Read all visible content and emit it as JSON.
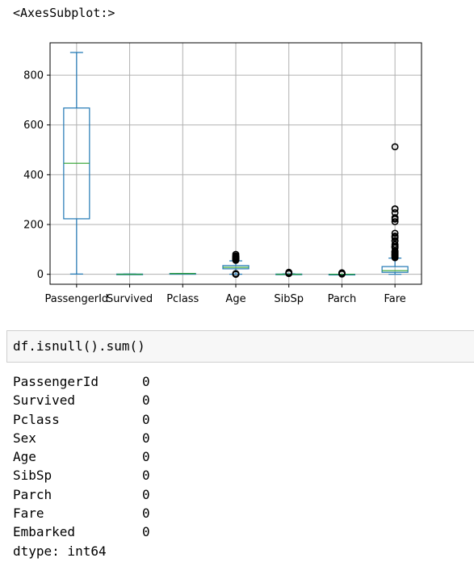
{
  "output_label": "<AxesSubplot:>",
  "code_cell": {
    "code": "df.isnull().sum()"
  },
  "null_counts": [
    {
      "name": "PassengerId",
      "value": "0"
    },
    {
      "name": "Survived",
      "value": "0"
    },
    {
      "name": "Pclass",
      "value": "0"
    },
    {
      "name": "Sex",
      "value": "0"
    },
    {
      "name": "Age",
      "value": "0"
    },
    {
      "name": "SibSp",
      "value": "0"
    },
    {
      "name": "Parch",
      "value": "0"
    },
    {
      "name": "Fare",
      "value": "0"
    },
    {
      "name": "Embarked",
      "value": "0"
    }
  ],
  "dtype_line": "dtype: int64",
  "chart_data": {
    "type": "box",
    "title": "",
    "xlabel": "",
    "ylabel": "",
    "ylim": [
      -40,
      930
    ],
    "yticks": [
      0,
      200,
      400,
      600,
      800
    ],
    "grid": true,
    "colors": {
      "box": "#1f77b4",
      "median": "#2ca02c",
      "grid": "#b0b0b0"
    },
    "series": [
      {
        "name": "PassengerId",
        "whislo": 1,
        "q1": 223,
        "med": 446,
        "q3": 668,
        "whishi": 891,
        "fliers": []
      },
      {
        "name": "Survived",
        "whislo": 0,
        "q1": 0,
        "med": 0,
        "q3": 1,
        "whishi": 1,
        "fliers": []
      },
      {
        "name": "Pclass",
        "whislo": 1,
        "q1": 2,
        "med": 3,
        "q3": 3,
        "whishi": 3,
        "fliers": []
      },
      {
        "name": "Age",
        "whislo": 0.42,
        "q1": 22,
        "med": 28,
        "q3": 35,
        "whishi": 54,
        "fliers": [
          0.42,
          0.67,
          0.75,
          0.83,
          0.92,
          1,
          2,
          3,
          56,
          58,
          60,
          62,
          64,
          65,
          66,
          70,
          71,
          74,
          80
        ]
      },
      {
        "name": "SibSp",
        "whislo": 0,
        "q1": 0,
        "med": 0,
        "q3": 1,
        "whishi": 2,
        "fliers": [
          3,
          4,
          5,
          8
        ]
      },
      {
        "name": "Parch",
        "whislo": 0,
        "q1": 0,
        "med": 0,
        "q3": 0,
        "whishi": 0,
        "fliers": [
          1,
          2,
          3,
          4,
          5,
          6
        ]
      },
      {
        "name": "Fare",
        "whislo": 0,
        "q1": 7.9,
        "med": 14.5,
        "q3": 31,
        "whishi": 65,
        "fliers": [
          66.6,
          69.5,
          71.3,
          73.5,
          76.7,
          77.3,
          79.2,
          82.2,
          83.2,
          86.5,
          89.1,
          90,
          91.1,
          93.5,
          106.4,
          108.9,
          110.9,
          113.3,
          120,
          133.7,
          135.6,
          146.5,
          151.6,
          153.5,
          164.9,
          211.3,
          221.8,
          227.5,
          247.5,
          262.4,
          263,
          512.3
        ]
      }
    ]
  }
}
